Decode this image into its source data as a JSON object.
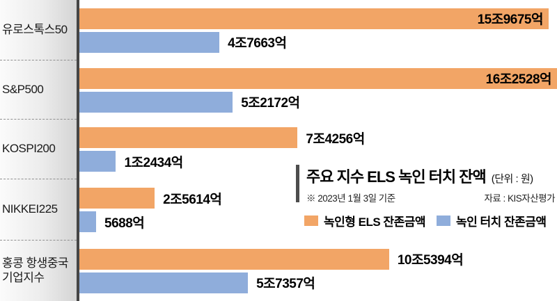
{
  "header": {
    "title": "주요 지수 ELS 녹인 터치 잔액",
    "unit": "(단위 : 원)",
    "note": "※ 2023년 1월 3일 기준",
    "source": "자료 : KIS자산평가"
  },
  "chart_data": {
    "type": "bar",
    "orientation": "horizontal",
    "title": "주요 지수 ELS 녹인 터치 잔액",
    "value_unit": "억 원",
    "categories": [
      "유로스톡스50",
      "S&P500",
      "KOSPI200",
      "NIKKEI225",
      "홍콩 항생중국\n기업지수"
    ],
    "series": [
      {
        "name": "녹인형 ELS 잔존금액",
        "color": "#F2A566",
        "values_eok": [
          159675,
          162528,
          74256,
          25614,
          105394
        ],
        "labels": [
          "15조9675억",
          "16조2528억",
          "7조4256억",
          "2조5614억",
          "10조5394억"
        ]
      },
      {
        "name": "녹인 터치 잔존금액",
        "color": "#8FADDB",
        "values_eok": [
          47663,
          52172,
          12434,
          5688,
          57357
        ],
        "labels": [
          "4조7663억",
          "5조2172억",
          "1조2434억",
          "5688억",
          "5조7357억"
        ]
      }
    ],
    "xlim": [
      0,
      162528
    ],
    "grid": false,
    "legend_position": "middle-right"
  }
}
